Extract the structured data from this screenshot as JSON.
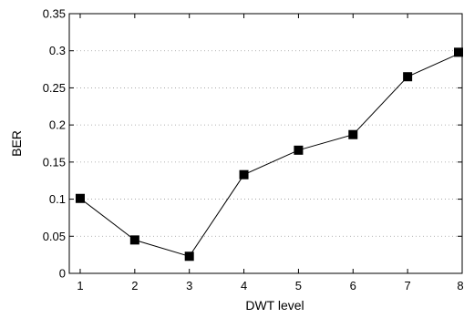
{
  "chart_data": {
    "type": "line",
    "title": "",
    "xlabel": "DWT level",
    "ylabel": "BER",
    "x": [
      1,
      2,
      3,
      4,
      5,
      6,
      7,
      8
    ],
    "series": [
      {
        "values": [
          0.101,
          0.045,
          0.023,
          0.133,
          0.166,
          0.187,
          0.265,
          0.298
        ]
      }
    ],
    "xlim": [
      0.8,
      8
    ],
    "ylim": [
      0,
      0.35
    ],
    "xticks": [
      1,
      2,
      3,
      4,
      5,
      6,
      7,
      8
    ],
    "xtick_labels": [
      "1",
      "2",
      "3",
      "4",
      "5",
      "6",
      "7",
      "8"
    ],
    "yticks": [
      0,
      0.05,
      0.1,
      0.15,
      0.2,
      0.25,
      0.3,
      0.35
    ],
    "ytick_labels": [
      "0",
      "0.05",
      "0.1",
      "0.15",
      "0.2",
      "0.25",
      "0.3",
      "0.35"
    ],
    "grid": "horizontal-dotted",
    "marker": "square",
    "colors": {
      "line": "#000000",
      "marker": "#000000",
      "grid": "#9a9a9a"
    }
  }
}
